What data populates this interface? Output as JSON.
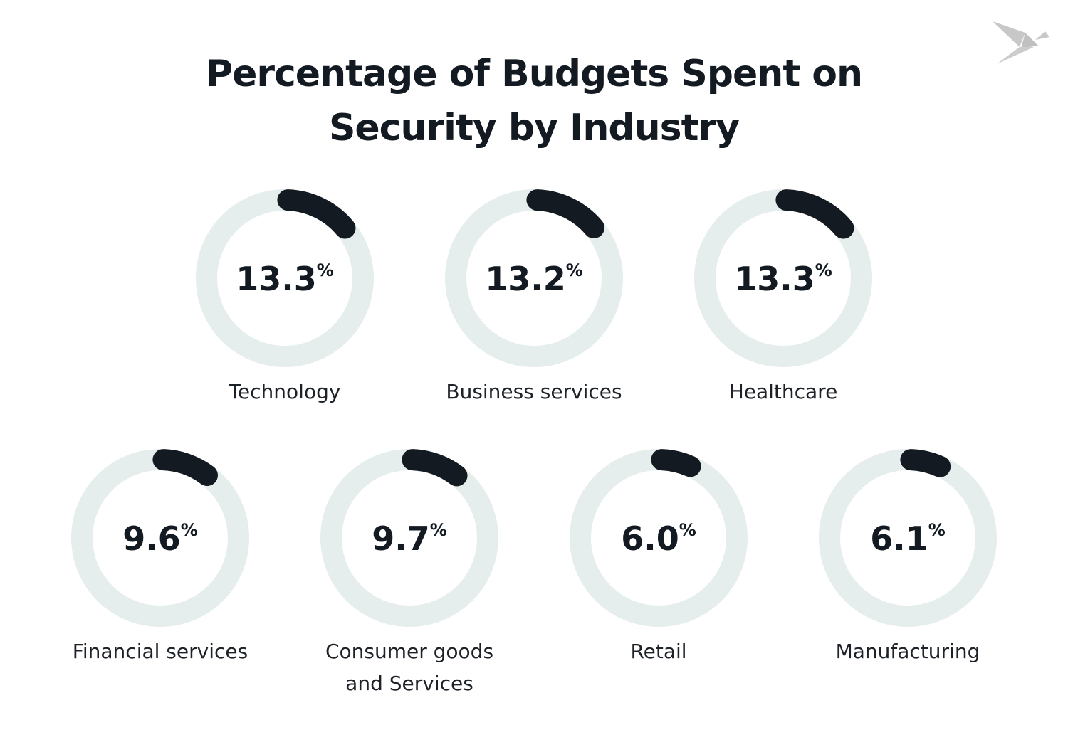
{
  "chart_data": {
    "type": "donut",
    "title": "Percentage of Budgets Spent on Security by Industry",
    "title_lines": [
      "Percentage of Budgets Spent on",
      "Security by Industry"
    ],
    "unit": "%",
    "range": [
      0,
      100
    ],
    "categories": [
      [
        "Technology"
      ],
      [
        "Business services"
      ],
      [
        "Healthcare"
      ],
      [
        "Financial services"
      ],
      [
        "Consumer goods",
        "and Services"
      ],
      [
        "Retail"
      ],
      [
        "Manufacturing"
      ]
    ],
    "values": [
      13.3,
      13.2,
      13.3,
      9.6,
      9.7,
      6.0,
      6.1
    ],
    "value_labels": [
      "13.3",
      "13.2",
      "13.3",
      "9.6",
      "9.7",
      "6.0",
      "6.1"
    ],
    "colors": {
      "arc": "#131a21",
      "track": "#e5eeec",
      "text": "#131a21",
      "logo": "#c8c8c8"
    }
  },
  "logo": {
    "icon": "origami-bird-icon"
  }
}
